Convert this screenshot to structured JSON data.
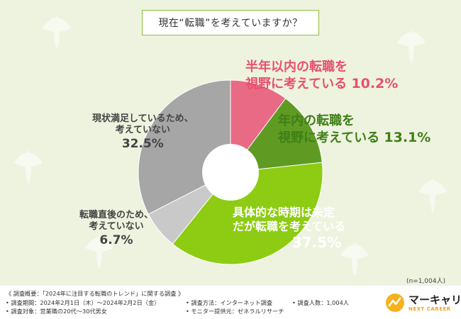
{
  "title": "現在“転職”を考えていますか？",
  "chart_data": {
    "type": "pie",
    "donut": true,
    "start_angle_deg": 0,
    "direction": "clockwise",
    "slices": [
      {
        "label": "半年以内の転職を視野に考えている",
        "line1": "半年以内の転職を",
        "line2": "視野に考えている",
        "value": 10.2,
        "pct_text": "10.2%",
        "color": "#e96a84"
      },
      {
        "label": "年内の転職を視野に考えている",
        "line1": "年内の転職を",
        "line2": "視野に考えている",
        "value": 13.1,
        "pct_text": "13.1%",
        "color": "#5f9b23"
      },
      {
        "label": "具体的な時期は未定だが転職を考えている",
        "line1": "具体的な時期は未定",
        "line2": "だが転職を考えている",
        "value": 37.5,
        "pct_text": "37.5%",
        "color": "#8dcc12"
      },
      {
        "label": "転職直後のため、考えていない",
        "line1": "転職直後のため、",
        "line2": "考えていない",
        "value": 6.7,
        "pct_text": "6.7%",
        "color": "#c9c9c9"
      },
      {
        "label": "現状満足しているため、考えていない",
        "line1": "現状満足しているため、",
        "line2": "考えていない",
        "value": 32.5,
        "pct_text": "32.5%",
        "color": "#a6a6a6"
      }
    ]
  },
  "sample_note": "(n=1,004人)",
  "footer": {
    "overview": "《 調査概要：「2024年に注目する転職のトレンド」に関する調査 》",
    "period": "• 調査期間：2024年2月1日（木）〜2024年2月2日（金）",
    "method": "• 調査方法：インターネット調査",
    "count": "• 調査人数：1,004人",
    "target": "• 調査対象：営業職の20代〜30代男女",
    "provider": "• モニター提供元：ゼネラルリサーチ"
  },
  "logo": {
    "name": "マーキャリ",
    "sub": "NEXT CAREER"
  },
  "colors": {
    "accent": "#8fbf3a",
    "background": "#eef3df"
  }
}
